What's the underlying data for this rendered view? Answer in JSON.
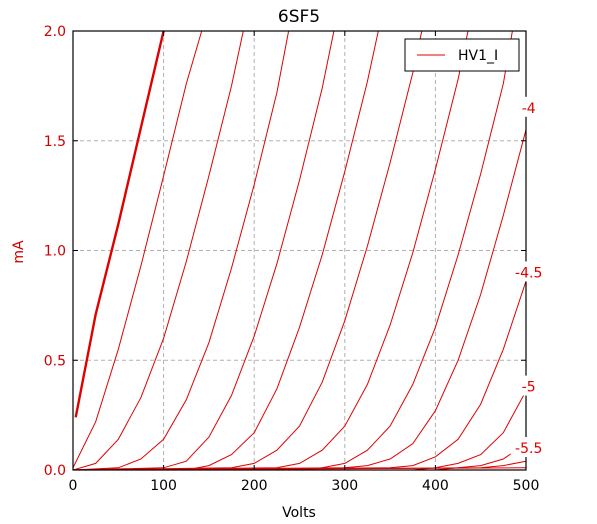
{
  "chart_data": {
    "type": "line",
    "title": "6SF5",
    "xlabel": "Volts",
    "ylabel": "mA",
    "xlim": [
      0,
      500
    ],
    "ylim": [
      0,
      2.0
    ],
    "xticks": [
      "0",
      "100",
      "200",
      "300",
      "400",
      "500"
    ],
    "yticks": [
      "0.0",
      "0.5",
      "1.0",
      "1.5",
      "2.0"
    ],
    "grid": true,
    "legend": {
      "position": "top-right",
      "entries": [
        "HV1_I"
      ]
    },
    "line_color": "#e00000",
    "curve_labels": [
      "-4",
      "-4.5",
      "-5",
      "-5.5"
    ],
    "series": [
      {
        "bold": true,
        "points": [
          [
            3,
            0.24
          ],
          [
            25,
            0.71
          ],
          [
            50,
            1.12
          ],
          [
            75,
            1.56
          ],
          [
            100,
            2.0
          ]
        ]
      },
      {
        "points": [
          [
            0,
            0.01
          ],
          [
            25,
            0.22
          ],
          [
            50,
            0.55
          ],
          [
            75,
            0.93
          ],
          [
            100,
            1.34
          ],
          [
            125,
            1.76
          ],
          [
            142,
            2.0
          ]
        ]
      },
      {
        "points": [
          [
            0,
            0.0
          ],
          [
            25,
            0.03
          ],
          [
            50,
            0.14
          ],
          [
            75,
            0.33
          ],
          [
            100,
            0.6
          ],
          [
            125,
            0.95
          ],
          [
            150,
            1.34
          ],
          [
            175,
            1.75
          ],
          [
            188,
            2.0
          ]
        ]
      },
      {
        "points": [
          [
            0,
            0.0
          ],
          [
            50,
            0.01
          ],
          [
            75,
            0.05
          ],
          [
            100,
            0.14
          ],
          [
            125,
            0.32
          ],
          [
            150,
            0.58
          ],
          [
            175,
            0.92
          ],
          [
            200,
            1.3
          ],
          [
            225,
            1.72
          ],
          [
            238,
            2.0
          ]
        ]
      },
      {
        "points": [
          [
            0,
            0.0
          ],
          [
            100,
            0.01
          ],
          [
            125,
            0.04
          ],
          [
            150,
            0.15
          ],
          [
            175,
            0.34
          ],
          [
            200,
            0.61
          ],
          [
            225,
            0.94
          ],
          [
            250,
            1.32
          ],
          [
            275,
            1.74
          ],
          [
            288,
            2.0
          ]
        ]
      },
      {
        "points": [
          [
            0,
            0.0
          ],
          [
            125,
            0.0
          ],
          [
            150,
            0.02
          ],
          [
            175,
            0.07
          ],
          [
            200,
            0.17
          ],
          [
            225,
            0.37
          ],
          [
            250,
            0.65
          ],
          [
            275,
            0.98
          ],
          [
            300,
            1.36
          ],
          [
            325,
            1.77
          ],
          [
            337,
            2.0
          ]
        ]
      },
      {
        "points": [
          [
            0,
            0.0
          ],
          [
            175,
            0.01
          ],
          [
            200,
            0.03
          ],
          [
            225,
            0.09
          ],
          [
            250,
            0.2
          ],
          [
            275,
            0.4
          ],
          [
            300,
            0.68
          ],
          [
            325,
            1.02
          ],
          [
            350,
            1.4
          ],
          [
            375,
            1.81
          ],
          [
            385,
            2.0
          ]
        ]
      },
      {
        "points": [
          [
            0,
            0.0
          ],
          [
            225,
            0.01
          ],
          [
            250,
            0.03
          ],
          [
            275,
            0.09
          ],
          [
            300,
            0.2
          ],
          [
            325,
            0.39
          ],
          [
            350,
            0.66
          ],
          [
            375,
            0.99
          ],
          [
            400,
            1.37
          ],
          [
            425,
            1.78
          ],
          [
            436,
            2.0
          ]
        ]
      },
      {
        "points": [
          [
            0,
            0.0
          ],
          [
            250,
            0.0
          ],
          [
            275,
            0.01
          ],
          [
            300,
            0.03
          ],
          [
            325,
            0.09
          ],
          [
            350,
            0.2
          ],
          [
            375,
            0.39
          ],
          [
            400,
            0.65
          ],
          [
            425,
            0.98
          ],
          [
            450,
            1.35
          ],
          [
            475,
            1.76
          ],
          [
            485,
            2.0
          ]
        ]
      },
      {
        "points": [
          [
            0,
            0.0
          ],
          [
            300,
            0.01
          ],
          [
            325,
            0.02
          ],
          [
            350,
            0.05
          ],
          [
            375,
            0.12
          ],
          [
            400,
            0.27
          ],
          [
            425,
            0.5
          ],
          [
            450,
            0.8
          ],
          [
            475,
            1.16
          ],
          [
            500,
            1.55
          ]
        ]
      },
      {
        "points": [
          [
            0,
            0.0
          ],
          [
            350,
            0.01
          ],
          [
            375,
            0.02
          ],
          [
            400,
            0.06
          ],
          [
            425,
            0.14
          ],
          [
            450,
            0.3
          ],
          [
            475,
            0.55
          ],
          [
            500,
            0.86
          ]
        ]
      },
      {
        "points": [
          [
            0,
            0.0
          ],
          [
            375,
            0.0
          ],
          [
            400,
            0.01
          ],
          [
            425,
            0.03
          ],
          [
            450,
            0.07
          ],
          [
            475,
            0.17
          ],
          [
            500,
            0.36
          ]
        ]
      },
      {
        "points": [
          [
            0,
            0.0
          ],
          [
            400,
            0.0
          ],
          [
            425,
            0.01
          ],
          [
            450,
            0.02
          ],
          [
            475,
            0.05
          ],
          [
            500,
            0.12
          ]
        ]
      },
      {
        "points": [
          [
            0,
            0.0
          ],
          [
            450,
            0.01
          ],
          [
            475,
            0.02
          ],
          [
            500,
            0.04
          ]
        ]
      },
      {
        "points": [
          [
            0,
            0.0
          ],
          [
            500,
            0.01
          ]
        ]
      }
    ]
  }
}
